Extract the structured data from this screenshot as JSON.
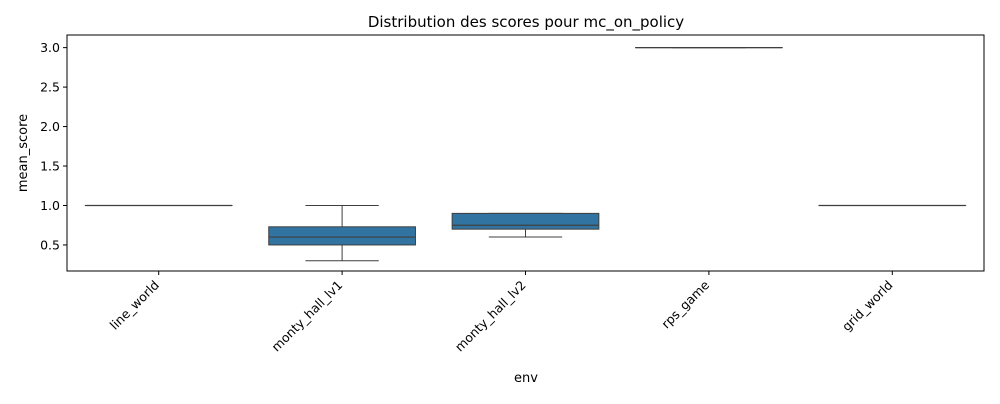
{
  "chart_data": {
    "type": "box",
    "title": "Distribution des scores pour mc_on_policy",
    "xlabel": "env",
    "ylabel": "mean_score",
    "ylim": [
      0.17,
      3.16
    ],
    "yticks": [
      "0.5",
      "1.0",
      "1.5",
      "2.0",
      "2.5",
      "3.0"
    ],
    "grid": false,
    "box_color": "#3274a1",
    "line_color": "#3f3f3f",
    "categories": [
      "line_world",
      "monty_hall_lv1",
      "monty_hall_lv2",
      "rps_game",
      "grid_world"
    ],
    "boxes": [
      {
        "category": "line_world",
        "whisker_low": 1.0,
        "q1": 1.0,
        "median": 1.0,
        "q3": 1.0,
        "whisker_high": 1.0
      },
      {
        "category": "monty_hall_lv1",
        "whisker_low": 0.3,
        "q1": 0.5,
        "median": 0.6,
        "q3": 0.73,
        "whisker_high": 1.0
      },
      {
        "category": "monty_hall_lv2",
        "whisker_low": 0.6,
        "q1": 0.7,
        "median": 0.75,
        "q3": 0.9,
        "whisker_high": 0.9
      },
      {
        "category": "rps_game",
        "whisker_low": 3.0,
        "q1": 3.0,
        "median": 3.0,
        "q3": 3.0,
        "whisker_high": 3.0
      },
      {
        "category": "grid_world",
        "whisker_low": 1.0,
        "q1": 1.0,
        "median": 1.0,
        "q3": 1.0,
        "whisker_high": 1.0
      }
    ]
  }
}
